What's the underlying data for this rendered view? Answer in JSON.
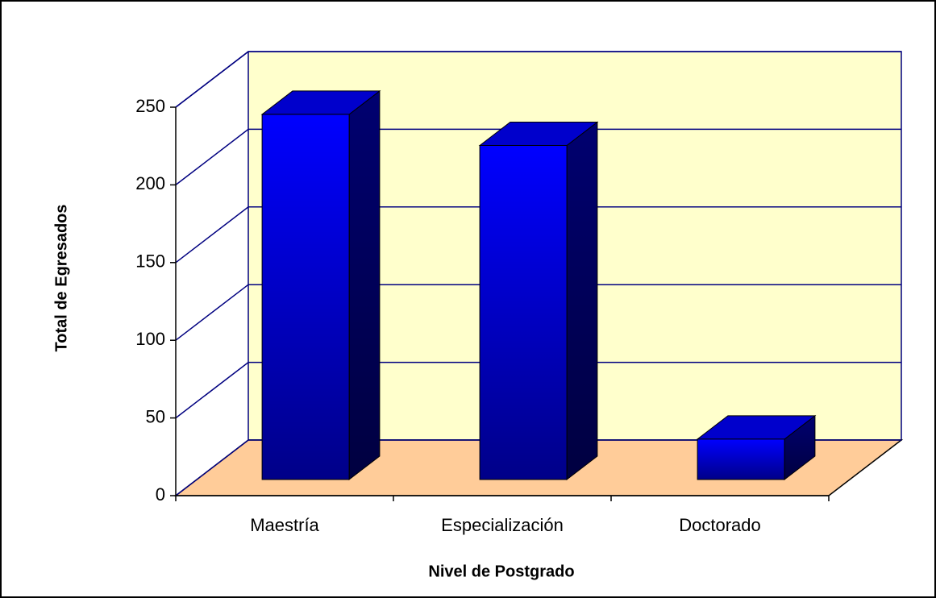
{
  "chart_data": {
    "type": "bar3d",
    "x_label": "Nivel de Postgrado",
    "y_label": "Total de Egresados",
    "categories": [
      "Maestría",
      "Especialización",
      "Doctorado"
    ],
    "values": [
      235,
      215,
      26
    ],
    "color": "#0000ff",
    "ylim": [
      0,
      250
    ],
    "yticks": [
      0,
      50,
      100,
      150,
      200,
      250
    ],
    "grid": true
  }
}
